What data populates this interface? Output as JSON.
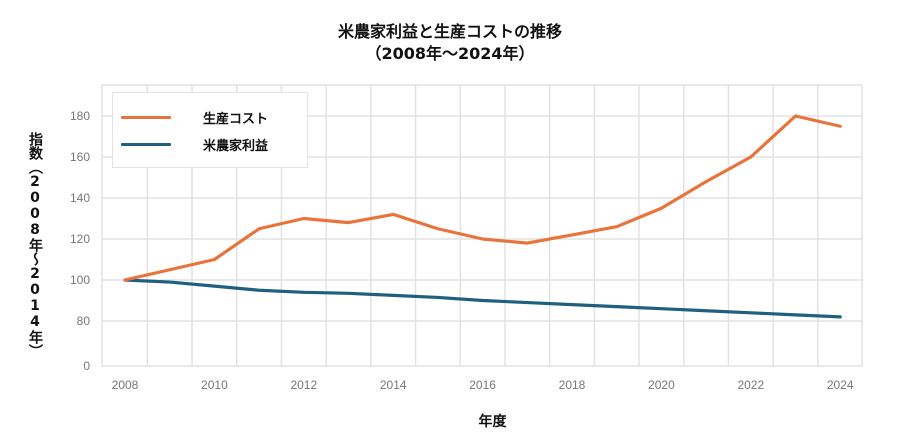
{
  "chart_data": {
    "type": "line",
    "title": "米農家利益と生産コストの推移",
    "subtitle": "（2008年～2024年）",
    "xlabel": "年度",
    "ylabel": "指数（2008年～2014年）",
    "x": [
      2008,
      2009,
      2010,
      2011,
      2012,
      2013,
      2014,
      2015,
      2016,
      2017,
      2018,
      2019,
      2020,
      2021,
      2022,
      2023,
      2024
    ],
    "x_tick_labels": [
      "2008",
      "2010",
      "2012",
      "2014",
      "2016",
      "2018",
      "2020",
      "2022",
      "2024"
    ],
    "y_tick_labels": [
      "0",
      "80",
      "100",
      "120",
      "140",
      "160",
      "180"
    ],
    "y_ticks": [
      0,
      80,
      100,
      120,
      140,
      160,
      180
    ],
    "y_axis_break": "axis jumps from 0 directly to 80",
    "ylim": [
      0,
      192
    ],
    "grid": true,
    "legend_position": "top-left",
    "series": [
      {
        "name": "生産コスト",
        "color": "#E8743B",
        "values": [
          100,
          105,
          110,
          125,
          130,
          128,
          132,
          125,
          120,
          118,
          122,
          126,
          135,
          148,
          160,
          180,
          175
        ]
      },
      {
        "name": "米農家利益",
        "color": "#1F5F7F",
        "values": [
          100,
          99,
          97,
          95,
          94,
          93.5,
          92.5,
          91.5,
          90,
          89,
          88,
          87,
          86,
          85,
          84,
          83,
          82
        ]
      }
    ]
  }
}
